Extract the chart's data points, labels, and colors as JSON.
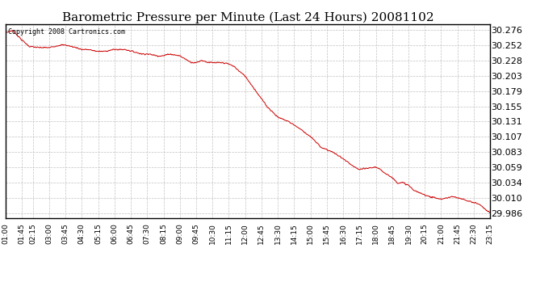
{
  "title": "Barometric Pressure per Minute (Last 24 Hours) 20081102",
  "copyright_text": "Copyright 2008 Cartronics.com",
  "line_color": "#cc0000",
  "background_color": "#ffffff",
  "grid_color": "#bbbbbb",
  "title_fontsize": 11,
  "ylabel_fontsize": 8,
  "xlabel_fontsize": 6.5,
  "yticks": [
    29.986,
    30.01,
    30.034,
    30.059,
    30.083,
    30.107,
    30.131,
    30.155,
    30.179,
    30.203,
    30.228,
    30.252,
    30.276
  ],
  "xtick_labels": [
    "01:00",
    "01:45",
    "02:15",
    "03:00",
    "03:45",
    "04:30",
    "05:15",
    "06:00",
    "06:45",
    "07:30",
    "08:15",
    "09:00",
    "09:45",
    "10:30",
    "11:15",
    "12:00",
    "12:45",
    "13:30",
    "14:15",
    "15:00",
    "15:45",
    "16:30",
    "17:15",
    "18:00",
    "18:45",
    "19:30",
    "20:15",
    "21:00",
    "21:45",
    "22:30",
    "23:15"
  ],
  "ymin": 29.978,
  "ymax": 30.285,
  "control_t": [
    0,
    20,
    45,
    65,
    90,
    120,
    150,
    165,
    195,
    210,
    225,
    255,
    270,
    300,
    330,
    375,
    390,
    420,
    435,
    450,
    480,
    510,
    525,
    540,
    555,
    570,
    585,
    600,
    615,
    630,
    645,
    660,
    690,
    720,
    750,
    780,
    810,
    840,
    870,
    900,
    930,
    960,
    975,
    1020,
    1050,
    1065,
    1080,
    1095,
    1110,
    1125,
    1140,
    1155,
    1170,
    1185,
    1200,
    1215,
    1230,
    1245,
    1260,
    1275,
    1290,
    1305,
    1320,
    1335
  ],
  "control_p": [
    30.272,
    30.275,
    30.26,
    30.25,
    30.248,
    30.248,
    30.252,
    30.252,
    30.248,
    30.245,
    30.245,
    30.242,
    30.242,
    30.245,
    30.245,
    30.238,
    30.238,
    30.235,
    30.235,
    30.238,
    30.235,
    30.225,
    30.224,
    30.228,
    30.225,
    30.224,
    30.224,
    30.224,
    30.222,
    30.218,
    30.21,
    30.203,
    30.179,
    30.155,
    30.138,
    30.131,
    30.12,
    30.107,
    30.09,
    30.083,
    30.072,
    30.059,
    30.055,
    30.059,
    30.048,
    30.042,
    30.034,
    30.034,
    30.03,
    30.022,
    30.018,
    30.015,
    30.012,
    30.01,
    30.008,
    30.01,
    30.012,
    30.01,
    30.008,
    30.005,
    30.003,
    30.0,
    29.993,
    29.986
  ]
}
